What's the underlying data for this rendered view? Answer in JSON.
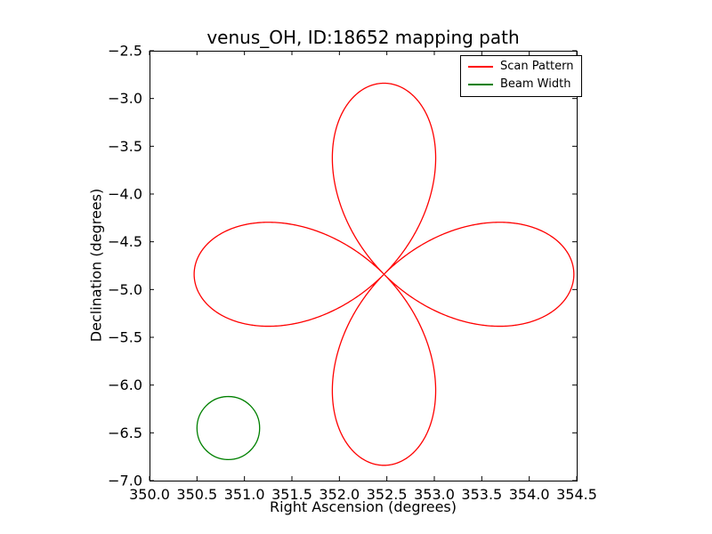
{
  "figure": {
    "background": "#ffffff",
    "frame_color": "#000000"
  },
  "chart_data": {
    "type": "line",
    "title": "venus_OH, ID:18652 mapping path",
    "xlabel": "Right Ascension (degrees)",
    "ylabel": "Declination (degrees)",
    "xlim": [
      350.0,
      354.5
    ],
    "ylim": [
      -7.0,
      -2.5
    ],
    "xticks": [
      350.0,
      350.5,
      351.0,
      351.5,
      352.0,
      352.5,
      353.0,
      353.5,
      354.0,
      354.5
    ],
    "xtick_labels": [
      "350.0",
      "350.5",
      "351.0",
      "351.5",
      "352.0",
      "352.5",
      "353.0",
      "353.5",
      "354.0",
      "354.5"
    ],
    "yticks": [
      -7.0,
      -6.5,
      -6.0,
      -5.5,
      -5.0,
      -4.5,
      -4.0,
      -3.5,
      -3.0,
      -2.5
    ],
    "ytick_labels": [
      "−7.0",
      "−6.5",
      "−6.0",
      "−5.5",
      "−5.0",
      "−4.5",
      "−4.0",
      "−3.5",
      "−3.0",
      "−2.5"
    ],
    "grid": false,
    "legend": {
      "position": "upper-right",
      "entries": [
        {
          "label": "Scan Pattern",
          "color": "#ff0000"
        },
        {
          "label": "Beam Width",
          "color": "#008000"
        }
      ]
    },
    "series": [
      {
        "name": "Scan Pattern",
        "shape": "rose-curve",
        "color": "#ff0000",
        "center": [
          352.47,
          -4.84
        ],
        "amplitude": 2.0,
        "petals": 4,
        "rotation_deg": 0
      },
      {
        "name": "Beam Width",
        "shape": "circle",
        "color": "#008000",
        "center": [
          350.83,
          -6.45
        ],
        "radius": 0.33
      }
    ]
  }
}
